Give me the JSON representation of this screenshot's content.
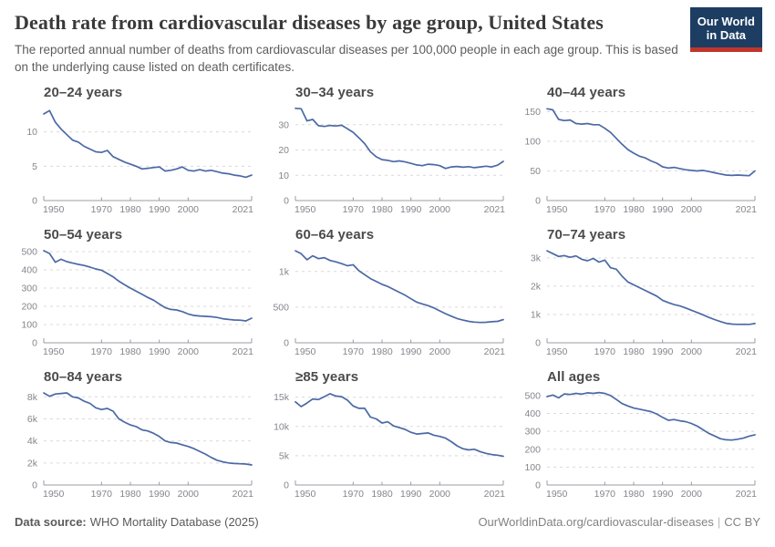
{
  "page": {
    "title": "Death rate from cardiovascular diseases by age group, United States",
    "subtitle": "The reported annual number of deaths from cardiovascular diseases per 100,000 people in each age group. This is based on the underlying cause listed on death certificates.",
    "logo": {
      "line1": "Our World",
      "line2": "in Data"
    },
    "footer": {
      "source_label": "Data source:",
      "source_value": "WHO Mortality Database (2025)",
      "link": "OurWorldinData.org/cardiovascular-diseases",
      "separator": "|",
      "license": "CC BY"
    }
  },
  "colors": {
    "line": "#4b69a5",
    "grid": "#d9d9d9",
    "axis": "#9c9ca3",
    "tick_text": "#85858d",
    "logo_bg": "#1d3d63",
    "logo_stripe": "#c0362c"
  },
  "chart_data": {
    "type": "line",
    "x_domain": [
      1950,
      2022
    ],
    "x": [
      1950,
      1952,
      1954,
      1956,
      1958,
      1960,
      1962,
      1964,
      1966,
      1968,
      1970,
      1972,
      1974,
      1976,
      1978,
      1980,
      1982,
      1984,
      1986,
      1988,
      1990,
      1992,
      1994,
      1996,
      1998,
      2000,
      2002,
      2004,
      2006,
      2008,
      2010,
      2012,
      2014,
      2016,
      2018,
      2020,
      2022
    ],
    "x_tick_years": [
      1950,
      1970,
      1980,
      1990,
      2000,
      2021
    ],
    "x_tick_labels": [
      "1950",
      "1970",
      "1980",
      "1990",
      "2000",
      "2021"
    ],
    "grid": "dashed",
    "legend": "none",
    "charts": [
      {
        "title": "20–24 years",
        "ymax": 13.8,
        "yticks": [
          0,
          5,
          10
        ],
        "ytick_labels": [
          "0",
          "5",
          "10"
        ],
        "values": [
          12.6,
          13.1,
          11.4,
          10.4,
          9.6,
          8.8,
          8.5,
          7.9,
          7.5,
          7.1,
          7.0,
          7.3,
          6.4,
          6.0,
          5.6,
          5.3,
          5.0,
          4.6,
          4.7,
          4.8,
          4.9,
          4.3,
          4.4,
          4.6,
          4.9,
          4.4,
          4.3,
          4.5,
          4.3,
          4.4,
          4.2,
          4.0,
          3.9,
          3.7,
          3.6,
          3.4,
          3.7
        ]
      },
      {
        "title": "30–34 years",
        "ymax": 37.5,
        "yticks": [
          0,
          10,
          20,
          30
        ],
        "ytick_labels": [
          "0",
          "10",
          "20",
          "30"
        ],
        "values": [
          36.5,
          36.3,
          31.5,
          32.1,
          29.6,
          29.3,
          29.7,
          29.5,
          29.8,
          28.4,
          27.0,
          24.8,
          22.5,
          19.3,
          17.3,
          16.2,
          15.9,
          15.4,
          15.7,
          15.3,
          14.7,
          14.1,
          13.8,
          14.4,
          14.2,
          13.8,
          12.7,
          13.3,
          13.5,
          13.2,
          13.4,
          13.0,
          13.3,
          13.6,
          13.3,
          14.0,
          15.5
        ]
      },
      {
        "title": "40–44 years",
        "ymax": 160,
        "yticks": [
          0,
          50,
          100,
          150
        ],
        "ytick_labels": [
          "0",
          "50",
          "100",
          "150"
        ],
        "values": [
          155,
          153,
          137,
          135,
          136,
          130,
          129,
          130,
          128,
          128,
          122,
          115,
          105,
          95,
          86,
          80,
          75,
          72,
          67,
          63,
          57,
          55,
          56,
          54,
          52,
          51,
          50,
          51,
          49,
          47,
          45,
          43,
          42.5,
          43,
          42.5,
          42,
          50
        ]
      },
      {
        "title": "50–54 years",
        "ymax": 520,
        "yticks": [
          0,
          100,
          200,
          300,
          400,
          500
        ],
        "ytick_labels": [
          "0",
          "100",
          "200",
          "300",
          "400",
          "500"
        ],
        "values": [
          505,
          490,
          442,
          458,
          445,
          437,
          430,
          424,
          415,
          405,
          398,
          380,
          362,
          338,
          318,
          300,
          283,
          266,
          249,
          234,
          213,
          193,
          183,
          180,
          171,
          158,
          150,
          147,
          145,
          143,
          139,
          132,
          128,
          125,
          124,
          120,
          135
        ]
      },
      {
        "title": "60–64 years",
        "ymax": 1330,
        "yticks": [
          0,
          500,
          1000
        ],
        "ytick_labels": [
          "0",
          "500",
          "1k"
        ],
        "values": [
          1290,
          1250,
          1165,
          1220,
          1180,
          1195,
          1155,
          1135,
          1110,
          1080,
          1095,
          1010,
          955,
          900,
          860,
          820,
          790,
          748,
          708,
          668,
          618,
          570,
          545,
          520,
          488,
          448,
          408,
          373,
          340,
          318,
          300,
          290,
          285,
          288,
          295,
          300,
          325
        ]
      },
      {
        "title": "70–74 years",
        "ymax": 3350,
        "yticks": [
          0,
          1000,
          2000,
          3000
        ],
        "ytick_labels": [
          "0",
          "1k",
          "2k",
          "3k"
        ],
        "values": [
          3250,
          3150,
          3050,
          3080,
          3020,
          3070,
          2950,
          2900,
          2980,
          2850,
          2920,
          2650,
          2600,
          2350,
          2150,
          2050,
          1950,
          1850,
          1750,
          1650,
          1500,
          1420,
          1350,
          1300,
          1230,
          1150,
          1070,
          990,
          900,
          820,
          750,
          690,
          660,
          650,
          655,
          650,
          680
        ]
      },
      {
        "title": "80–84 years",
        "ymax": 8600,
        "yticks": [
          0,
          2000,
          4000,
          6000,
          8000
        ],
        "ytick_labels": [
          "0",
          "2k",
          "4k",
          "6k",
          "8k"
        ],
        "values": [
          8350,
          8050,
          8250,
          8300,
          8350,
          8000,
          7900,
          7600,
          7400,
          7000,
          6850,
          6950,
          6700,
          6000,
          5700,
          5450,
          5300,
          5000,
          4900,
          4700,
          4400,
          4000,
          3850,
          3800,
          3650,
          3500,
          3300,
          3050,
          2800,
          2500,
          2250,
          2100,
          2000,
          1950,
          1930,
          1900,
          1820
        ]
      },
      {
        "title": "≥85 years",
        "ymax": 16200,
        "yticks": [
          0,
          5000,
          10000,
          15000
        ],
        "ytick_labels": [
          "0",
          "5k",
          "10k",
          "15k"
        ],
        "values": [
          14200,
          13400,
          14000,
          14700,
          14600,
          15100,
          15600,
          15200,
          15100,
          14500,
          13500,
          13100,
          13100,
          11600,
          11300,
          10600,
          10800,
          10100,
          9800,
          9500,
          9000,
          8700,
          8800,
          8900,
          8500,
          8300,
          8000,
          7400,
          6700,
          6200,
          6000,
          6100,
          5700,
          5400,
          5200,
          5100,
          4900
        ]
      },
      {
        "title": "All ages",
        "ymax": 530,
        "yticks": [
          0,
          100,
          200,
          300,
          400,
          500
        ],
        "ytick_labels": [
          "0",
          "100",
          "200",
          "300",
          "400",
          "500"
        ],
        "values": [
          494,
          503,
          487,
          509,
          506,
          512,
          508,
          515,
          512,
          517,
          512,
          500,
          478,
          455,
          442,
          430,
          424,
          417,
          410,
          397,
          378,
          362,
          366,
          359,
          354,
          344,
          329,
          309,
          289,
          274,
          259,
          253,
          251,
          256,
          262,
          273,
          281
        ]
      }
    ]
  }
}
